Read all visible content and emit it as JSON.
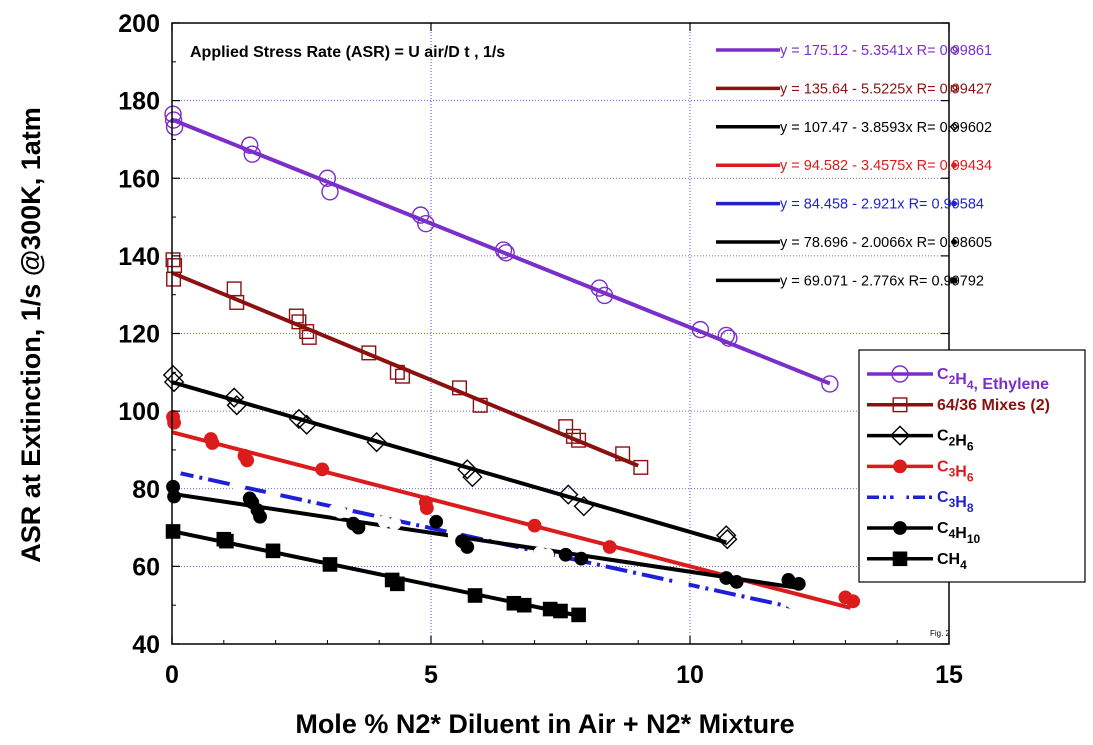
{
  "chart_data": {
    "type": "scatter",
    "xlabel": "Mole % N2* Diluent in Air + N2* Mixture",
    "ylabel": "ASR at Extinction, 1/s @300K, 1atm",
    "xlim": [
      0,
      15
    ],
    "ylim": [
      40,
      200
    ],
    "x_ticks": [
      "0",
      "5",
      "10",
      "15"
    ],
    "y_ticks": [
      "40",
      "60",
      "80",
      "100",
      "120",
      "140",
      "160",
      "180",
      "200"
    ],
    "grid": true,
    "annotation": "Applied Stress Rate (ASR) = U air/D t , 1/s",
    "fig_label": "Fig. 2",
    "legend_position": "right",
    "series": [
      {
        "name": "C2H4, Ethylene",
        "legend_parts": [
          [
            "C",
            ""
          ],
          [
            "2",
            "sub"
          ],
          [
            "H",
            ""
          ],
          [
            "4",
            "sub"
          ],
          [
            ", Ethylene",
            ""
          ]
        ],
        "color": "#7b2fc9",
        "marker": "circle-open",
        "dash": "",
        "fit": {
          "intercept": 175.12,
          "slope": -5.3541,
          "xmax": 12.7
        },
        "equation": "y = 175.12 - 5.3541x   R= 0.99861",
        "points": [
          [
            0.02,
            176.5
          ],
          [
            0.05,
            173.2
          ],
          [
            0.03,
            175.0
          ],
          [
            1.5,
            168.5
          ],
          [
            1.55,
            166.2
          ],
          [
            3.0,
            160.0
          ],
          [
            3.05,
            156.5
          ],
          [
            4.8,
            150.5
          ],
          [
            4.9,
            148.3
          ],
          [
            6.4,
            141.5
          ],
          [
            6.45,
            140.8
          ],
          [
            8.25,
            131.7
          ],
          [
            8.35,
            129.8
          ],
          [
            10.2,
            121.0
          ],
          [
            10.7,
            119.5
          ],
          [
            10.75,
            118.8
          ],
          [
            12.7,
            107.0
          ]
        ]
      },
      {
        "name": "64/36 Mixes (2)",
        "legend_parts": [
          [
            "64/36 Mixes (2)",
            ""
          ]
        ],
        "color": "#8b1010",
        "marker": "square-open",
        "dash": "",
        "fit": {
          "intercept": 135.64,
          "slope": -5.5225,
          "xmax": 9.0
        },
        "equation": "y = 135.64 - 5.5225x   R= 0.99427",
        "points": [
          [
            0.02,
            139.0
          ],
          [
            0.05,
            137.5
          ],
          [
            0.03,
            134.0
          ],
          [
            1.2,
            131.5
          ],
          [
            1.25,
            128.0
          ],
          [
            2.4,
            124.5
          ],
          [
            2.45,
            123.0
          ],
          [
            2.6,
            120.5
          ],
          [
            2.65,
            119.0
          ],
          [
            3.8,
            115.0
          ],
          [
            4.35,
            110.0
          ],
          [
            4.45,
            109.0
          ],
          [
            5.55,
            106.0
          ],
          [
            5.95,
            101.5
          ],
          [
            7.6,
            96.0
          ],
          [
            7.75,
            93.5
          ],
          [
            7.85,
            92.5
          ],
          [
            8.7,
            89.0
          ],
          [
            9.05,
            85.5
          ]
        ]
      },
      {
        "name": "C2H6",
        "legend_parts": [
          [
            "C",
            ""
          ],
          [
            "2",
            "sub"
          ],
          [
            "H",
            ""
          ],
          [
            "6",
            "sub"
          ]
        ],
        "color": "#000000",
        "marker": "diamond-open",
        "dash": "",
        "fit": {
          "intercept": 107.47,
          "slope": -3.8593,
          "xmax": 10.7
        },
        "equation": "y = 107.47 - 3.8593x   R= 0.99602",
        "points": [
          [
            0.02,
            109.3
          ],
          [
            0.04,
            107.5
          ],
          [
            1.2,
            103.5
          ],
          [
            1.25,
            101.5
          ],
          [
            2.45,
            98.0
          ],
          [
            2.6,
            96.5
          ],
          [
            3.95,
            92.0
          ],
          [
            5.7,
            85.0
          ],
          [
            5.8,
            83.0
          ],
          [
            7.65,
            78.5
          ],
          [
            7.95,
            75.5
          ],
          [
            10.7,
            68.0
          ],
          [
            10.72,
            67.0
          ]
        ]
      },
      {
        "name": "C3H6",
        "legend_parts": [
          [
            "C",
            ""
          ],
          [
            "3",
            "sub"
          ],
          [
            "H",
            ""
          ],
          [
            "6",
            "sub"
          ]
        ],
        "color": "#dc1c1c",
        "marker": "circle-filled",
        "dash": "",
        "fit": {
          "intercept": 94.582,
          "slope": -3.4575,
          "xmax": 13.1
        },
        "equation": "y = 94.582 - 3.4575x   R= 0.99434",
        "points": [
          [
            0.02,
            98.5
          ],
          [
            0.04,
            97.0
          ],
          [
            0.75,
            92.8
          ],
          [
            0.78,
            91.8
          ],
          [
            1.4,
            88.5
          ],
          [
            1.45,
            87.3
          ],
          [
            2.9,
            85.0
          ],
          [
            4.9,
            76.5
          ],
          [
            4.92,
            75.0
          ],
          [
            7.0,
            70.5
          ],
          [
            8.45,
            65.0
          ],
          [
            13.0,
            52.0
          ],
          [
            13.15,
            51.0
          ]
        ]
      },
      {
        "name": "C3H8",
        "legend_parts": [
          [
            "C",
            ""
          ],
          [
            "3",
            "sub"
          ],
          [
            "H",
            ""
          ],
          [
            "8",
            "sub"
          ]
        ],
        "color": "#1f1fd6",
        "marker": "circle-open-white",
        "dash": "22 6 3 6",
        "fit": {
          "intercept": 84.458,
          "slope": -2.921,
          "xmax": 12.0
        },
        "equation": "y = 84.458 - 2.921x   R= 0.99584",
        "points": [
          [
            0.05,
            84.5
          ],
          [
            1.3,
            81.0
          ],
          [
            1.95,
            78.3
          ],
          [
            3.15,
            74.5
          ],
          [
            3.25,
            74.0
          ],
          [
            4.1,
            71.5
          ],
          [
            4.3,
            71.0
          ],
          [
            5.45,
            68.0
          ],
          [
            7.1,
            63.5
          ],
          [
            7.25,
            63.0
          ],
          [
            9.85,
            55.5
          ],
          [
            11.95,
            51.0
          ],
          [
            12.0,
            50.5
          ]
        ]
      },
      {
        "name": "C4H10",
        "legend_parts": [
          [
            "C",
            ""
          ],
          [
            "4",
            "sub"
          ],
          [
            "H",
            ""
          ],
          [
            "10",
            "sub"
          ]
        ],
        "color": "#000000",
        "marker": "circle-filled",
        "dash": "",
        "fit": {
          "intercept": 78.696,
          "slope": -2.0066,
          "xmax": 12.1
        },
        "equation": "y = 78.696 - 2.0066x   R= 0.98605",
        "points": [
          [
            0.02,
            80.5
          ],
          [
            0.04,
            78.0
          ],
          [
            1.5,
            77.5
          ],
          [
            1.55,
            76.5
          ],
          [
            1.65,
            74.5
          ],
          [
            1.7,
            72.8
          ],
          [
            3.5,
            71.0
          ],
          [
            3.6,
            70.0
          ],
          [
            5.1,
            71.5
          ],
          [
            5.6,
            66.5
          ],
          [
            5.7,
            65.0
          ],
          [
            7.6,
            63.0
          ],
          [
            7.9,
            62.0
          ],
          [
            10.7,
            57.0
          ],
          [
            10.9,
            56.0
          ],
          [
            11.9,
            56.5
          ],
          [
            12.1,
            55.5
          ]
        ]
      },
      {
        "name": "CH4",
        "legend_parts": [
          [
            "CH",
            ""
          ],
          [
            "4",
            "sub"
          ]
        ],
        "color": "#000000",
        "marker": "square-filled",
        "dash": "",
        "fit": {
          "intercept": 69.071,
          "slope": -2.776,
          "xmax": 7.85
        },
        "equation": "y = 69.071 - 2.776x   R= 0.99792",
        "points": [
          [
            0.02,
            69.0
          ],
          [
            1.0,
            67.0
          ],
          [
            1.05,
            66.5
          ],
          [
            1.95,
            64.0
          ],
          [
            3.05,
            60.5
          ],
          [
            4.25,
            56.5
          ],
          [
            4.35,
            55.5
          ],
          [
            5.85,
            52.5
          ],
          [
            6.6,
            50.5
          ],
          [
            6.8,
            50.0
          ],
          [
            7.3,
            49.0
          ],
          [
            7.5,
            48.5
          ],
          [
            7.85,
            47.5
          ]
        ]
      }
    ]
  }
}
